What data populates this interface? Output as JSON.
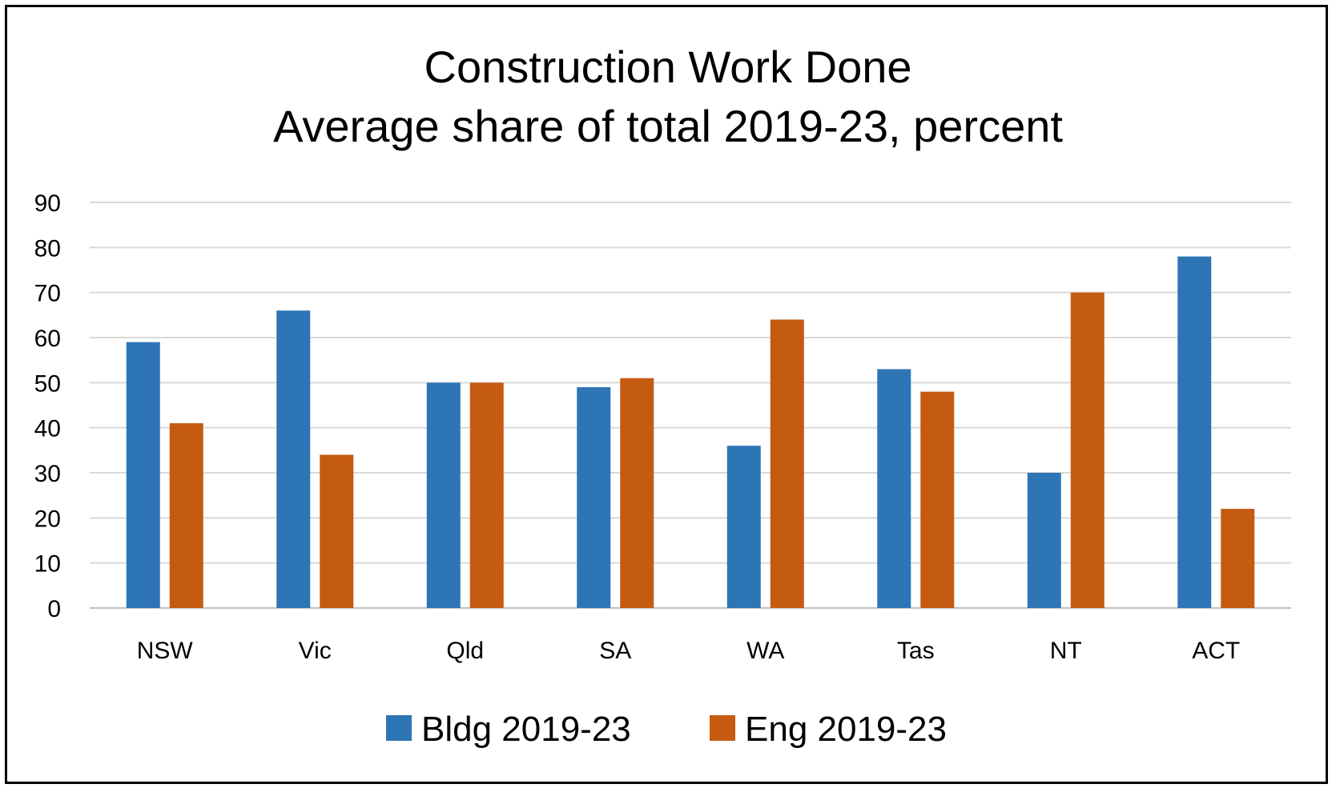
{
  "chart_data": {
    "type": "bar",
    "title": "Construction Work Done",
    "subtitle": "Average share of total 2019-23, percent",
    "categories": [
      "NSW",
      "Vic",
      "Qld",
      "SA",
      "WA",
      "Tas",
      "NT",
      "ACT"
    ],
    "series": [
      {
        "name": "Bldg 2019-23",
        "color": "#2E75B6",
        "values": [
          59,
          66,
          50,
          49,
          36,
          53,
          30,
          78
        ]
      },
      {
        "name": "Eng 2019-23",
        "color": "#C55A11",
        "values": [
          41,
          34,
          50,
          51,
          64,
          48,
          70,
          22
        ]
      }
    ],
    "ylim": [
      0,
      90
    ],
    "yticks": [
      0,
      10,
      20,
      30,
      40,
      50,
      60,
      70,
      80,
      90
    ],
    "grid": true,
    "gridColor": "#D9D9D9",
    "legend": "bottom"
  }
}
